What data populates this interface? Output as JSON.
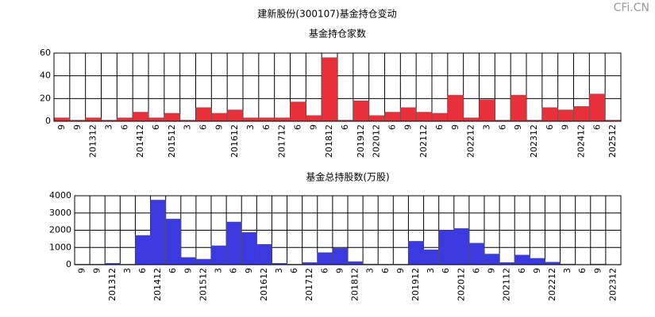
{
  "title": "建新股份(300107)基金持仓变动",
  "watermark": "CFi.CN",
  "chart_data": [
    {
      "type": "bar",
      "title": "基金持仓家数",
      "categories": [
        "9",
        "9",
        "201312",
        "3",
        "6",
        "201412",
        "6",
        "201512",
        "3",
        "6",
        "9",
        "201612",
        "3",
        "6",
        "201712",
        "6",
        "9",
        "201812",
        "6",
        "201912",
        "202012",
        "6",
        "9",
        "202112",
        "6",
        "9",
        "202212",
        "3",
        "6",
        "9",
        "202312",
        "6",
        "9",
        "202412",
        "6",
        "202512"
      ],
      "values": [
        3,
        1,
        3,
        1,
        3,
        8,
        3,
        7,
        1,
        12,
        7,
        10,
        3,
        3,
        3,
        17,
        5,
        56,
        1,
        18,
        5,
        8,
        12,
        8,
        7,
        23,
        3,
        19,
        1,
        23,
        1,
        12,
        10,
        13,
        24,
        1
      ],
      "color": "#e8303a",
      "ylim": [
        0,
        60
      ],
      "yticks": [
        0,
        20,
        40,
        60
      ],
      "grid": true
    },
    {
      "type": "bar",
      "title": "基金总持股数(万股)",
      "categories": [
        "9",
        "9",
        "201312",
        "3",
        "6",
        "201412",
        "6",
        "9",
        "201512",
        "3",
        "6",
        "9",
        "201612",
        "3",
        "6",
        "201712",
        "6",
        "9",
        "201812",
        "3",
        "6",
        "9",
        "201912",
        "3",
        "6",
        "202012",
        "6",
        "9",
        "202112",
        "6",
        "9",
        "202212",
        "3",
        "6",
        "9",
        "202312"
      ],
      "values": [
        30,
        30,
        80,
        30,
        1700,
        3750,
        2650,
        420,
        320,
        1100,
        2480,
        1870,
        1180,
        80,
        30,
        130,
        700,
        950,
        180,
        40,
        30,
        30,
        1360,
        870,
        2000,
        2100,
        1250,
        620,
        130,
        560,
        370,
        150,
        40,
        20,
        40,
        20
      ],
      "color": "#3a3ae0",
      "ylim": [
        0,
        4000
      ],
      "yticks": [
        0,
        1000,
        2000,
        3000,
        4000
      ],
      "grid": true
    }
  ]
}
